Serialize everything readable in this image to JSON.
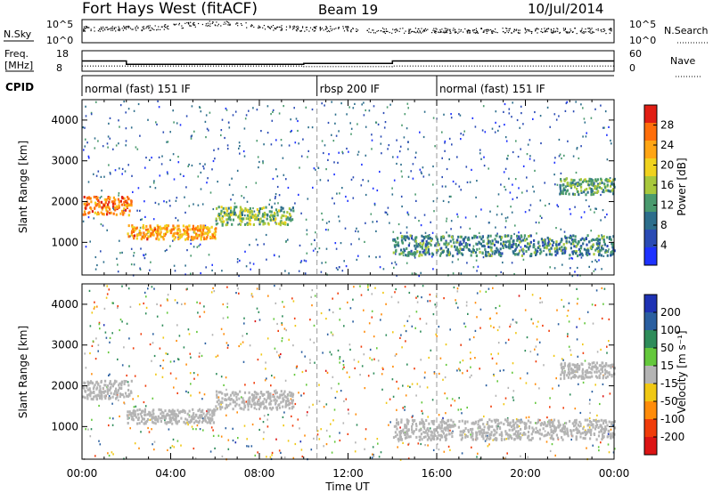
{
  "header": {
    "title": "Fort Hays West (fitACF)",
    "beam": "Beam 19",
    "date": "10/Jul/2014"
  },
  "summary_panels": {
    "nsky_label": "N.Sky",
    "nsearch_label": "N.Search",
    "noise_ticks_left": [
      "10^5",
      "10^0"
    ],
    "noise_ticks_right": [
      "10^5",
      "10^0"
    ],
    "freq_label_line1": "Freq.",
    "freq_label_line2": "[MHz]",
    "freq_ticks": [
      "18",
      "8"
    ],
    "nave_label": "Nave",
    "nave_ticks": [
      "60",
      "0"
    ],
    "cpid_label": "CPID"
  },
  "cpid_segments": [
    {
      "label": "normal (fast) 151 IF",
      "start_hour": 0,
      "end_hour": 10.6
    },
    {
      "label": "rbsp 200 IF",
      "start_hour": 10.6,
      "end_hour": 16.0
    },
    {
      "label": "normal (fast) 151 IF",
      "start_hour": 16.0,
      "end_hour": 24.0
    }
  ],
  "axes": {
    "y_label": "Slant Range [km]",
    "y_ticks": [
      "1000",
      "2000",
      "3000",
      "4000"
    ],
    "y_range_km": [
      200,
      4500
    ],
    "x_label": "Time UT",
    "x_ticks": [
      "00:00",
      "04:00",
      "08:00",
      "12:00",
      "16:00",
      "20:00",
      "00:00"
    ],
    "x_range_hours": [
      0,
      24
    ]
  },
  "power_colorbar": {
    "label": "Power [dB]",
    "ticks": [
      "4",
      "8",
      "12",
      "16",
      "20",
      "24",
      "28"
    ],
    "colors": [
      "#1e32ff",
      "#2a4bb4",
      "#2d6e8c",
      "#4a9a6e",
      "#a8c83c",
      "#f0d21e",
      "#ffa514",
      "#ff6e0a",
      "#e11e14"
    ]
  },
  "velocity_colorbar": {
    "label": "Velocity [m s⁻¹]",
    "ticks": [
      "200",
      "100",
      "50",
      "15",
      "-15",
      "-50",
      "-100",
      "-200"
    ],
    "colors": [
      "#1e32b4",
      "#2a5fa0",
      "#2e8c5a",
      "#64c83c",
      "#b4b4b4",
      "#f0c814",
      "#ff8c0a",
      "#f03c0a",
      "#dc1414"
    ]
  },
  "chart_data": {
    "type": "heatmap",
    "x_label": "Time UT",
    "y_label": "Slant Range [km]",
    "x_range_hours": [
      0,
      24
    ],
    "y_range_km": [
      200,
      4500
    ],
    "power_range_db": [
      0,
      30
    ],
    "velocity_range_ms": [
      -250,
      250
    ],
    "backscatter_regions": [
      {
        "start_hour": 0.0,
        "end_hour": 2.2,
        "range_km_low": 1700,
        "range_km_high": 2150,
        "power_db": 24,
        "velocity": 0
      },
      {
        "start_hour": 2.0,
        "end_hour": 6.0,
        "range_km_low": 1100,
        "range_km_high": 1450,
        "power_db": 22,
        "velocity": -5
      },
      {
        "start_hour": 6.0,
        "end_hour": 9.5,
        "range_km_low": 1450,
        "range_km_high": 1900,
        "power_db": 14,
        "velocity": 5
      },
      {
        "start_hour": 14.0,
        "end_hour": 24.0,
        "range_km_low": 700,
        "range_km_high": 1200,
        "power_db": 10,
        "velocity": 0
      },
      {
        "start_hour": 21.5,
        "end_hour": 24.0,
        "range_km_low": 2200,
        "range_km_high": 2600,
        "power_db": 12,
        "velocity": 0
      }
    ],
    "frequency_mhz": [
      {
        "start_hour": 0,
        "end_hour": 2.0,
        "value": 13
      },
      {
        "start_hour": 2.0,
        "end_hour": 10.0,
        "value": 11
      },
      {
        "start_hour": 10.0,
        "end_hour": 14.0,
        "value": 11.5
      },
      {
        "start_hour": 14.0,
        "end_hour": 24.0,
        "value": 13
      }
    ]
  }
}
